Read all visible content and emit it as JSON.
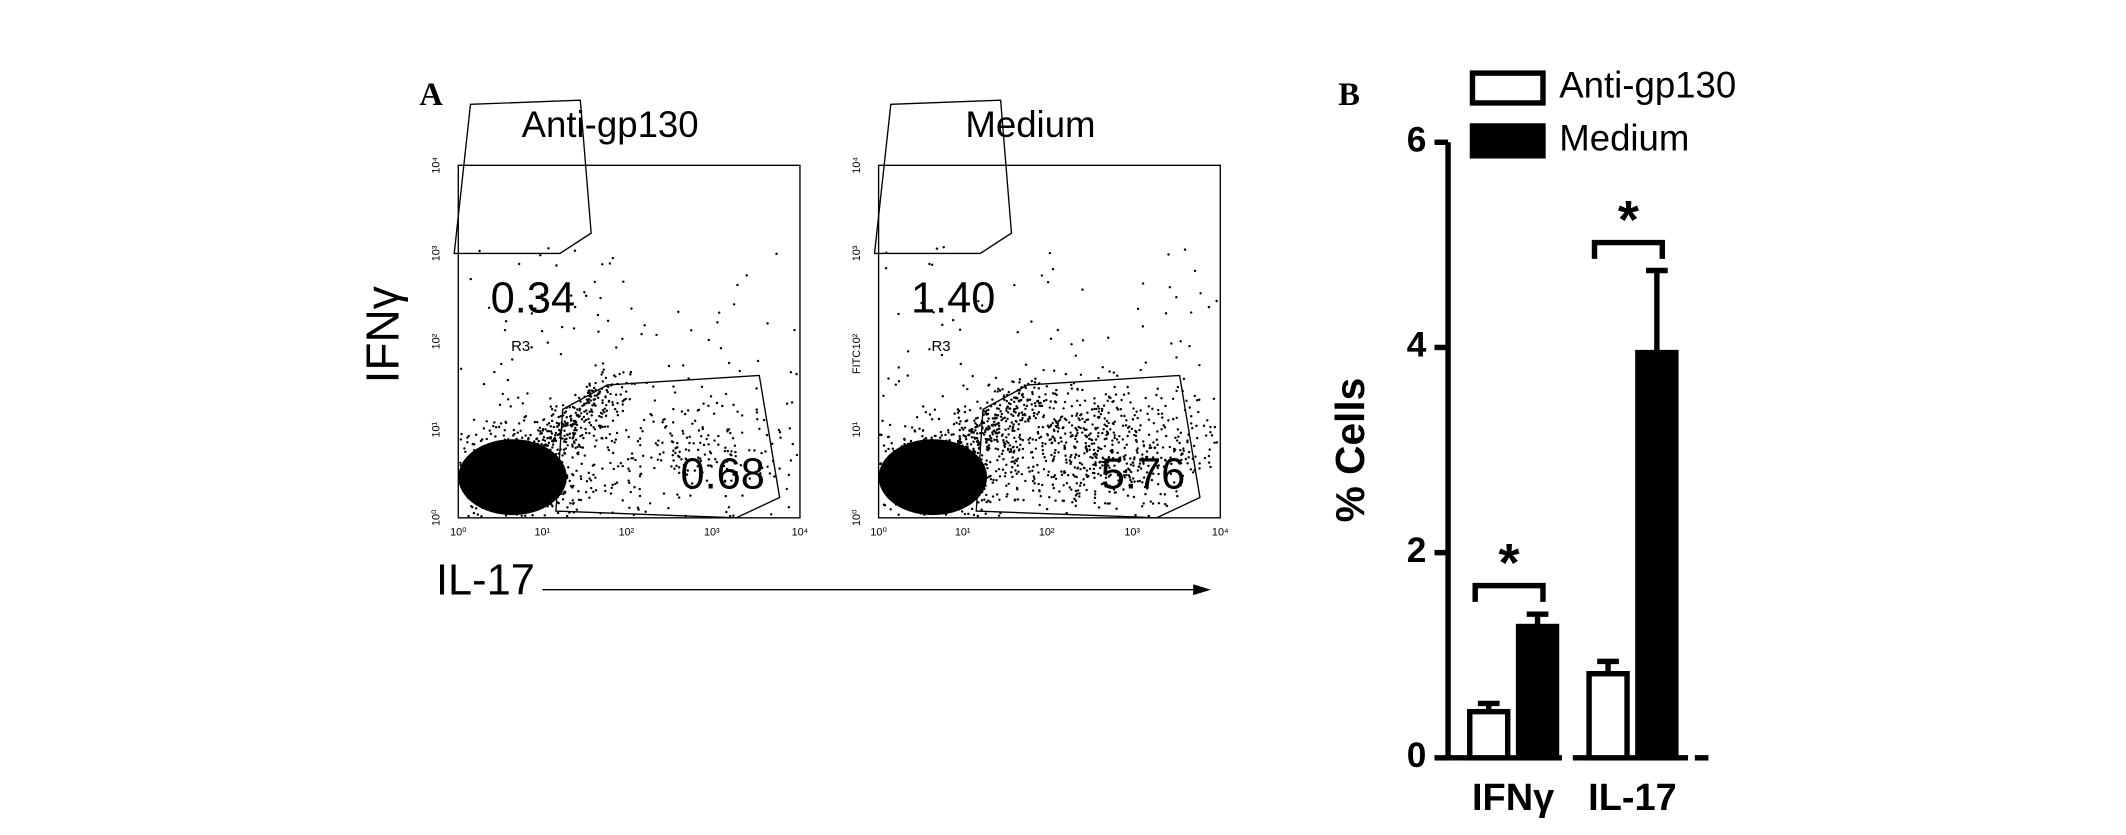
{
  "panel_a": {
    "label": "A",
    "y_label": "IFNγ",
    "x_label": "IL-17",
    "tick_labels": [
      "10⁰",
      "10¹",
      "10²",
      "10³",
      "10⁴"
    ],
    "plots": [
      {
        "title": "Anti-gp130",
        "upper_gate": "0.34",
        "gate_name": "R3",
        "lower_gate": "0.68"
      },
      {
        "title": "Medium",
        "y_channel": "FITC",
        "upper_gate": "1.40",
        "gate_name": "R3",
        "lower_gate": "5.76"
      }
    ]
  },
  "chart_data": {
    "type": "bar",
    "label": "B",
    "y_label": "% Cells",
    "categories": [
      "IFNγ",
      "IL-17"
    ],
    "series": [
      {
        "name": "Anti-gp130",
        "color": "#ffffff",
        "values": [
          0.45,
          0.82
        ],
        "errors": [
          0.08,
          0.12
        ]
      },
      {
        "name": "Medium",
        "color": "#000000",
        "values": [
          1.28,
          3.95
        ],
        "errors": [
          0.12,
          0.8
        ]
      }
    ],
    "ylim": [
      0,
      6
    ],
    "yticks": [
      0,
      2,
      4,
      6
    ],
    "annotations": [
      "*",
      "*"
    ]
  }
}
